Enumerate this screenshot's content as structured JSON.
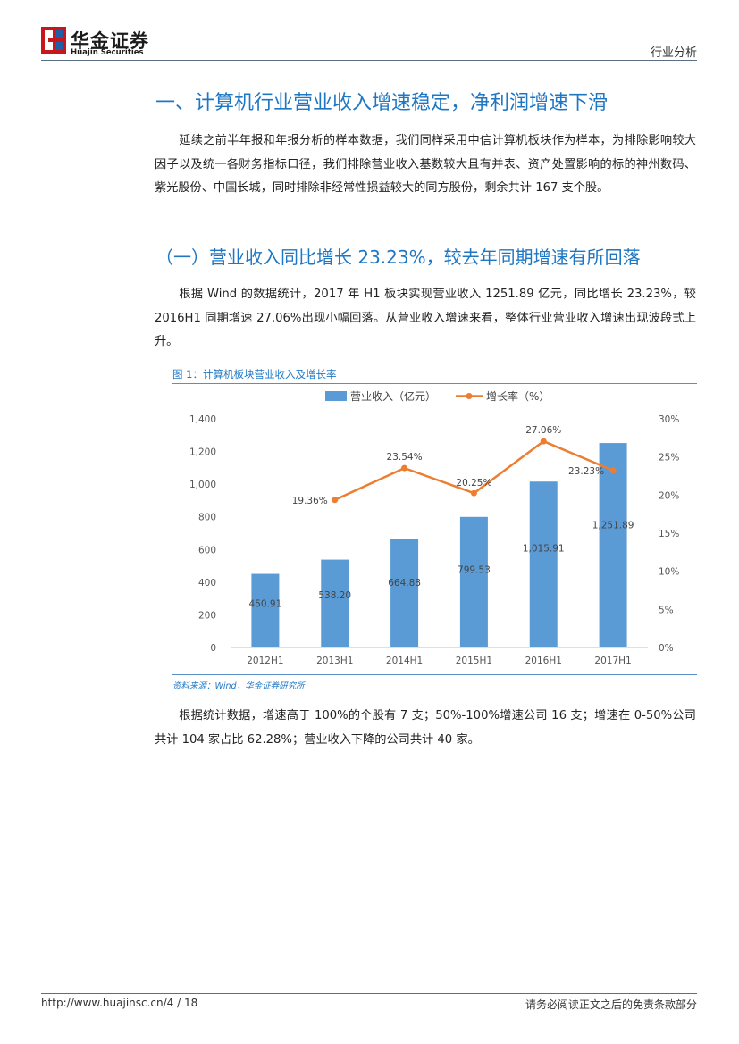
{
  "header": {
    "logo_cn": "华金证券",
    "logo_en": "Huajin Securities",
    "report_type": "行业分析"
  },
  "section_title": "一、计算机行业营业收入增速稳定，净利润增速下滑",
  "paragraph1": "延续之前半年报和年报分析的样本数据，我们同样采用中信计算机板块作为样本，为排除影响较大因子以及统一各财务指标口径，我们排除营业收入基数较大且有并表、资产处置影响的标的神州数码、紫光股份、中国长城，同时排除非经常性损益较大的同方股份，剩余共计 167 支个股。",
  "subsection_title": "（一）营业收入同比增长 23.23%，较去年同期增速有所回落",
  "paragraph2": "根据 Wind 的数据统计，2017 年 H1 板块实现营业收入 1251.89 亿元，同比增长 23.23%，较 2016H1 同期增速 27.06%出现小幅回落。从营业收入增速来看，整体行业营业收入增速出现波段式上升。",
  "figure": {
    "caption": "图 1：计算机板块营业收入及增长率",
    "source": "资料来源：Wind，华金证券研究所"
  },
  "chart_data": {
    "type": "bar",
    "categories": [
      "2012H1",
      "2013H1",
      "2014H1",
      "2015H1",
      "2016H1",
      "2017H1"
    ],
    "series": [
      {
        "name": "营业收入（亿元）",
        "type": "bar",
        "axis": "left",
        "values": [
          450.91,
          538.2,
          664.88,
          799.53,
          1015.91,
          1251.89
        ],
        "labels": [
          "450.91",
          "538.20",
          "664.88",
          "799.53",
          "1,015.91",
          "1,251.89"
        ],
        "color": "#5b9bd5"
      },
      {
        "name": "增长率（%）",
        "type": "line",
        "axis": "right",
        "values": [
          null,
          19.36,
          23.54,
          20.25,
          27.06,
          23.23
        ],
        "labels": [
          "",
          "19.36%",
          "23.54%",
          "20.25%",
          "27.06%",
          "23.23%"
        ],
        "color": "#ed7d31"
      }
    ],
    "y_left": {
      "min": 0,
      "max": 1400,
      "ticks": [
        "0",
        "200",
        "400",
        "600",
        "800",
        "1,000",
        "1,200",
        "1,400"
      ]
    },
    "y_right": {
      "min": 0,
      "max": 30,
      "ticks": [
        "0%",
        "5%",
        "10%",
        "15%",
        "20%",
        "25%",
        "30%"
      ]
    },
    "legend_position": "top",
    "grid": false
  },
  "paragraph3": "根据统计数据，增速高于 100%的个股有 7 支；50%-100%增速公司 16 支；增速在 0-50%公司共计 104 家占比 62.28%；营业收入下降的公司共计 40 家。",
  "footer": {
    "url": "http://www.huajinsc.cn/",
    "page": "4 / 18",
    "disclaimer": "请务必阅读正文之后的免责条款部分"
  }
}
